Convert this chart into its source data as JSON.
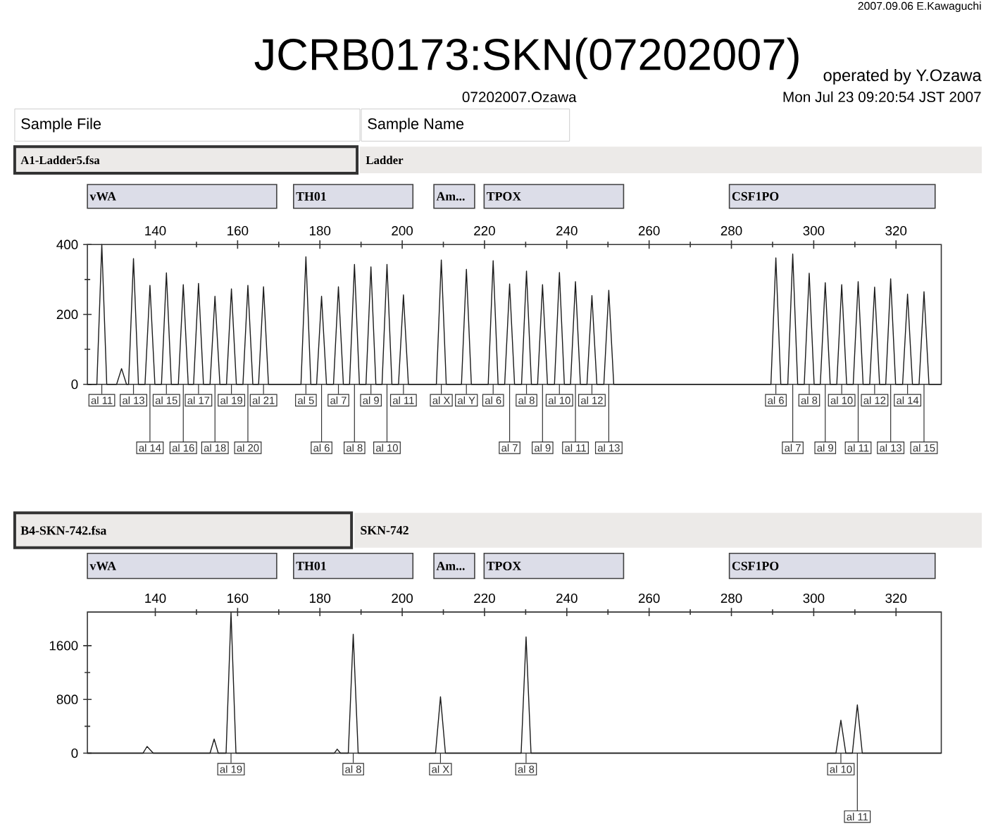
{
  "chart_data": [
    {
      "type": "line",
      "title": "JCRB0173:SKN(07202007)",
      "annotations": [
        "2007.09.06 E.Kawaguchi",
        "operated by Y.Ozawa",
        "07202007.Ozawa",
        "Mon Jul 23 09:20:54 JST 2007",
        "Sample File",
        "Sample Name",
        "A1-Ladder5.fsa",
        "Ladder",
        "vWA",
        "TH01",
        "Am...",
        "TPOX",
        "CSF1PO",
        {
          "text": "al 11",
          "x": 127.0,
          "y": 0
        },
        {
          "text": "al 13",
          "x": 134.7,
          "y": 0
        },
        {
          "text": "al 14",
          "x": 138.7,
          "y": 0
        },
        {
          "text": "al 15",
          "x": 142.7,
          "y": 0
        },
        {
          "text": "al 16",
          "x": 146.8,
          "y": 0
        },
        {
          "text": "al 17",
          "x": 150.5,
          "y": 0
        },
        {
          "text": "al 18",
          "x": 154.5,
          "y": 0
        },
        {
          "text": "al 19",
          "x": 158.5,
          "y": 0
        },
        {
          "text": "al 20",
          "x": 162.5,
          "y": 0
        },
        {
          "text": "al 21",
          "x": 166.3,
          "y": 0
        },
        {
          "text": "al 5",
          "x": 176.6,
          "y": 0
        },
        {
          "text": "al 6",
          "x": 180.4,
          "y": 0
        },
        {
          "text": "al 7",
          "x": 184.5,
          "y": 0
        },
        {
          "text": "al 8",
          "x": 188.4,
          "y": 0
        },
        {
          "text": "al 9",
          "x": 192.4,
          "y": 0
        },
        {
          "text": "al 10",
          "x": 196.3,
          "y": 0
        },
        {
          "text": "al 11",
          "x": 200.3,
          "y": 0
        },
        {
          "text": "al X",
          "x": 209.5,
          "y": 0
        },
        {
          "text": "al Y",
          "x": 215.6,
          "y": 0
        },
        {
          "text": "al 6",
          "x": 222.1,
          "y": 0
        },
        {
          "text": "al 7",
          "x": 226.1,
          "y": 0
        },
        {
          "text": "al 8",
          "x": 230.2,
          "y": 0
        },
        {
          "text": "al 9",
          "x": 234.1,
          "y": 0
        },
        {
          "text": "al 10",
          "x": 238.2,
          "y": 0
        },
        {
          "text": "al 11",
          "x": 242.1,
          "y": 0
        },
        {
          "text": "al 12",
          "x": 246.1,
          "y": 0
        },
        {
          "text": "al 13",
          "x": 250.2,
          "y": 0
        },
        {
          "text": "al 6",
          "x": 290.8,
          "y": 0
        },
        {
          "text": "al 7",
          "x": 294.9,
          "y": 0
        },
        {
          "text": "al 8",
          "x": 298.9,
          "y": 0
        },
        {
          "text": "al 9",
          "x": 302.8,
          "y": 0
        },
        {
          "text": "al 10",
          "x": 306.8,
          "y": 0
        },
        {
          "text": "al 11",
          "x": 310.8,
          "y": 0
        },
        {
          "text": "al 12",
          "x": 314.8,
          "y": 0
        },
        {
          "text": "al 13",
          "x": 318.7,
          "y": 0
        },
        {
          "text": "al 14",
          "x": 322.8,
          "y": 0
        },
        {
          "text": "al 15",
          "x": 326.8,
          "y": 0
        }
      ],
      "xlim": [
        123.5,
        331
      ],
      "ylim": [
        0,
        400
      ],
      "xticks": [
        140,
        160,
        180,
        200,
        220,
        240,
        260,
        280,
        300,
        320
      ],
      "yticks": [
        0,
        200,
        400
      ],
      "series": [
        {
          "color": "#1a1a1a",
          "x": [
            123.5,
            125.8,
            127.0,
            128.2,
            130.6,
            131.8,
            133.0,
            133.5,
            134.7,
            135.9,
            137.5,
            138.7,
            139.9,
            141.5,
            142.7,
            143.9,
            145.6,
            146.8,
            148.0,
            149.3,
            150.5,
            151.7,
            153.3,
            154.5,
            155.7,
            157.3,
            158.5,
            159.7,
            161.3,
            162.5,
            163.7,
            165.1,
            166.3,
            167.5,
            175.4,
            176.6,
            177.8,
            179.2,
            180.4,
            181.6,
            183.3,
            184.5,
            185.7,
            187.2,
            188.4,
            189.6,
            191.2,
            192.4,
            193.6,
            195.1,
            196.3,
            197.5,
            199.1,
            200.3,
            201.5,
            208.3,
            209.5,
            210.7,
            214.4,
            215.6,
            216.8,
            220.9,
            222.1,
            223.3,
            224.9,
            226.1,
            227.3,
            229.0,
            230.2,
            231.4,
            232.9,
            234.1,
            235.3,
            237.0,
            238.2,
            239.4,
            240.9,
            242.1,
            243.3,
            244.9,
            246.1,
            247.3,
            249.0,
            250.2,
            251.4,
            289.6,
            290.8,
            292.0,
            293.7,
            294.9,
            296.1,
            297.7,
            298.9,
            300.1,
            301.6,
            302.8,
            304.0,
            305.6,
            306.8,
            308.0,
            309.6,
            310.8,
            312.0,
            313.6,
            314.8,
            316.0,
            317.5,
            318.7,
            319.9,
            321.6,
            322.8,
            324.0,
            325.6,
            326.8,
            328.0,
            331.0
          ],
          "values": [
            0,
            0,
            400,
            0,
            0,
            45,
            0,
            0,
            360,
            0,
            0,
            283,
            0,
            0,
            319,
            0,
            0,
            285,
            0,
            0,
            289,
            0,
            0,
            252,
            0,
            0,
            273,
            0,
            0,
            283,
            0,
            0,
            279,
            0,
            0,
            365,
            0,
            0,
            252,
            0,
            0,
            279,
            0,
            0,
            343,
            0,
            0,
            336,
            0,
            0,
            343,
            0,
            0,
            256,
            0,
            0,
            356,
            0,
            0,
            329,
            0,
            0,
            354,
            0,
            0,
            287,
            0,
            0,
            324,
            0,
            0,
            285,
            0,
            0,
            320,
            0,
            0,
            294,
            0,
            0,
            254,
            0,
            0,
            269,
            0,
            0,
            362,
            0,
            0,
            373,
            0,
            0,
            318,
            0,
            0,
            291,
            0,
            0,
            285,
            0,
            0,
            294,
            0,
            0,
            278,
            0,
            0,
            302,
            0,
            0,
            258,
            0,
            0,
            265,
            0,
            0
          ]
        }
      ]
    },
    {
      "type": "line",
      "annotations": [
        "B4-SKN-742.fsa",
        "SKN-742",
        "vWA",
        "TH01",
        "Am...",
        "TPOX",
        "CSF1PO",
        {
          "text": "al 19",
          "x": 158.4,
          "y": 0
        },
        {
          "text": "al 8",
          "x": 188.1,
          "y": 0
        },
        {
          "text": "al X",
          "x": 209.3,
          "y": 0
        },
        {
          "text": "al 8",
          "x": 230.1,
          "y": 0
        },
        {
          "text": "al 10",
          "x": 306.6,
          "y": 0
        },
        {
          "text": "al 11",
          "x": 310.6,
          "y": 0
        }
      ],
      "xlim": [
        123.5,
        331
      ],
      "ylim": [
        0,
        2100
      ],
      "xticks": [
        140,
        160,
        180,
        200,
        220,
        240,
        260,
        280,
        300,
        320
      ],
      "yticks": [
        0,
        800,
        1600
      ],
      "series": [
        {
          "color": "#1a1a1a",
          "x": [
            123.5,
            137.0,
            138.0,
            139.5,
            153.3,
            154.3,
            155.3,
            157.2,
            158.4,
            159.6,
            183.5,
            184.2,
            185.0,
            186.9,
            188.1,
            189.3,
            208.1,
            209.3,
            210.5,
            228.9,
            230.1,
            231.3,
            305.4,
            306.6,
            307.8,
            309.4,
            310.6,
            311.8,
            331.0
          ],
          "values": [
            0,
            0,
            100,
            0,
            0,
            210,
            0,
            0,
            2090,
            0,
            0,
            60,
            0,
            0,
            1770,
            0,
            0,
            840,
            0,
            0,
            1730,
            0,
            0,
            490,
            0,
            0,
            720,
            0,
            0
          ]
        }
      ]
    }
  ]
}
